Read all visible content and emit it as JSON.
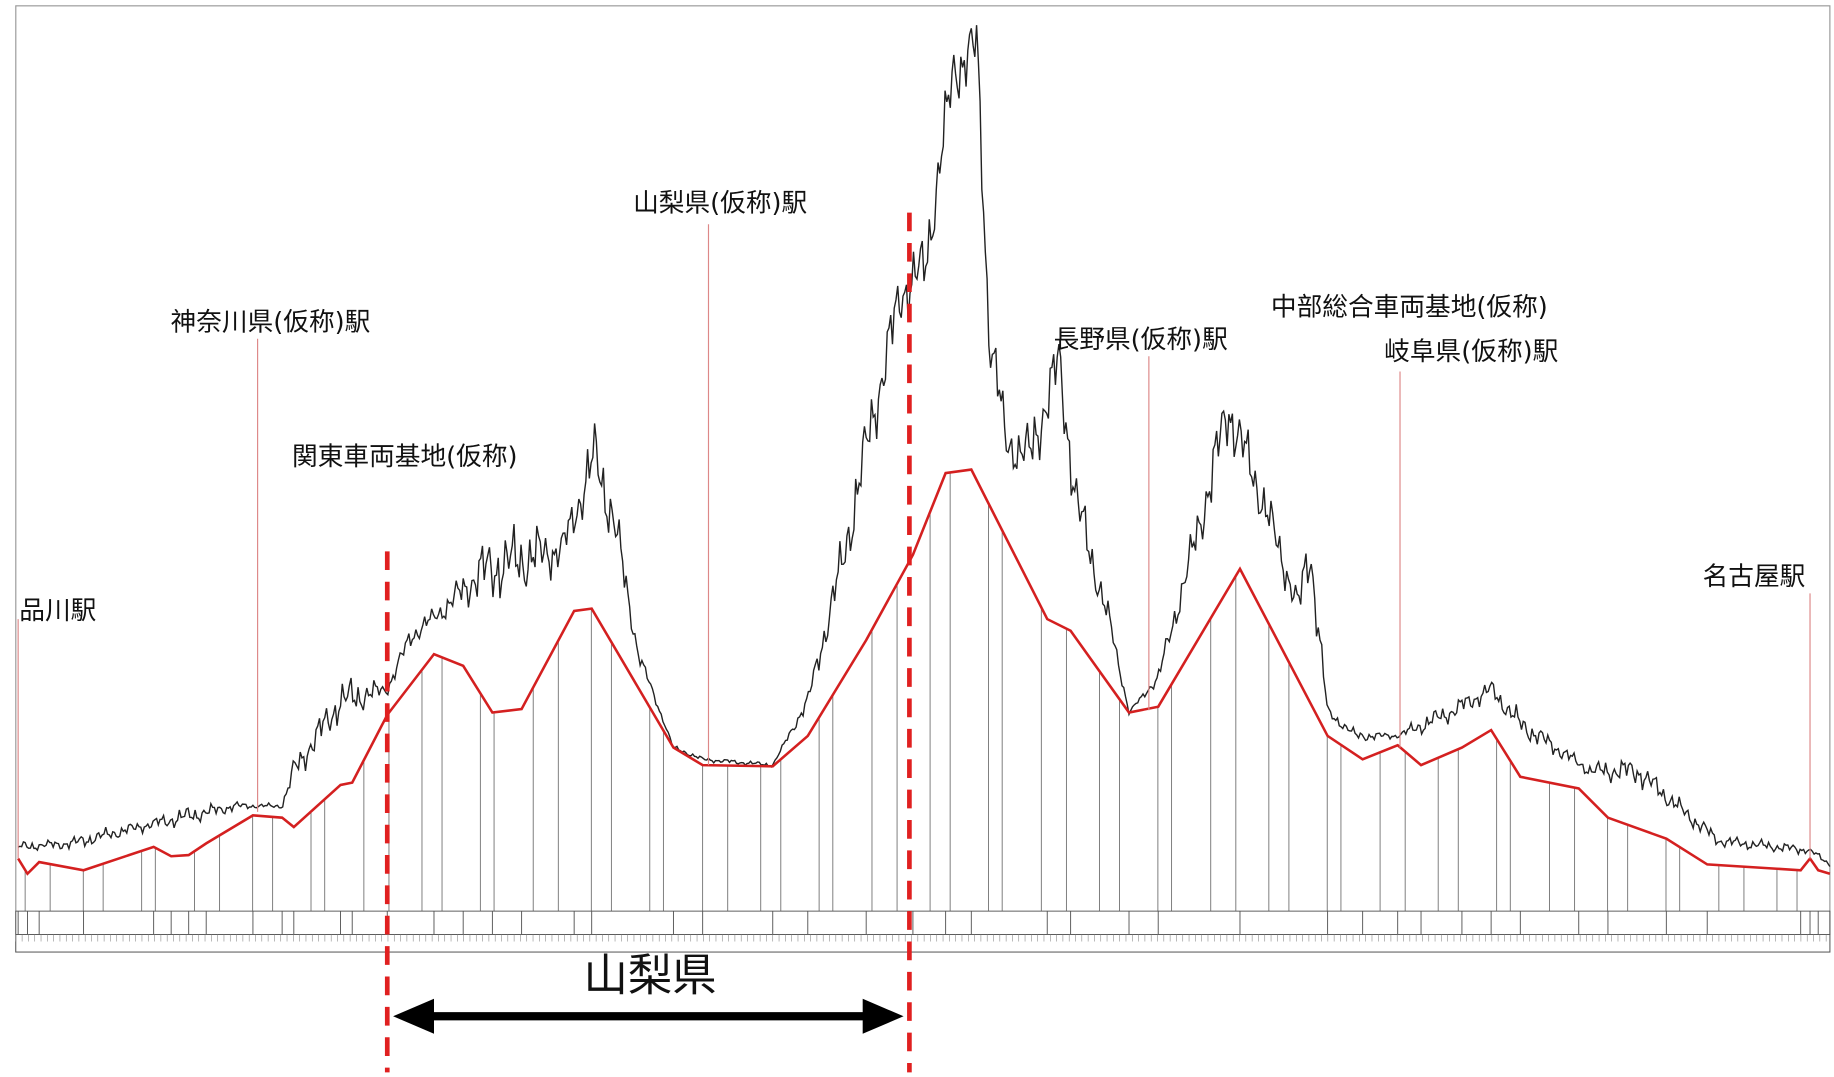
{
  "stations": [
    {
      "label": "品川駅"
    },
    {
      "label": "神奈川県(仮称)駅"
    },
    {
      "label": "関東車両基地(仮称)"
    },
    {
      "label": "山梨県(仮称)駅"
    },
    {
      "label": "長野県(仮称)駅"
    },
    {
      "label": "中部総合車両基地(仮称)"
    },
    {
      "label": "岐阜県(仮称)駅"
    },
    {
      "label": "名古屋駅"
    }
  ],
  "region_label": "山梨県"
}
